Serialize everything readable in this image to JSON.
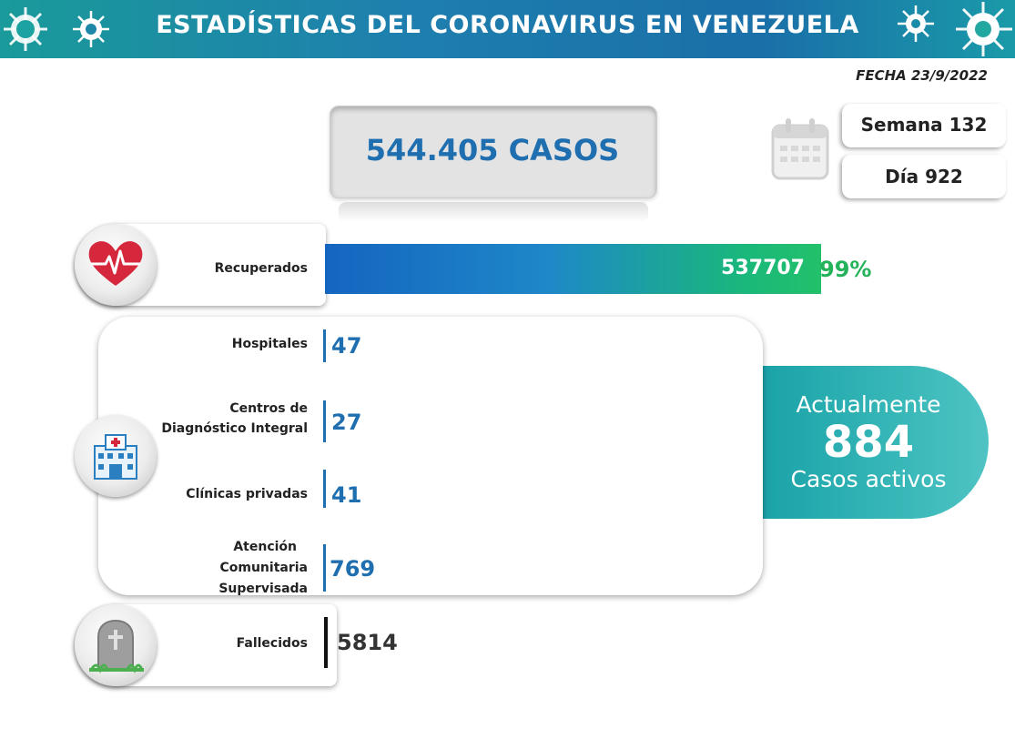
{
  "header": {
    "title": "ESTADÍSTICAS DEL CORONAVIRUS EN VENEZUELA",
    "date": "FECHA 23/9/2022"
  },
  "summary": {
    "total_cases": "544.405 CASOS",
    "week": "Semana 132",
    "day": "Día 922"
  },
  "recovered": {
    "label": "Recuperados",
    "value": "537707",
    "percent": "99%",
    "fraction": 0.99
  },
  "facilities": [
    {
      "label": "Hospitales",
      "value": "47"
    },
    {
      "label_line1": "Centros de",
      "label_line2": "Diagnóstico Integral",
      "value": "27"
    },
    {
      "label": "Clínicas privadas",
      "value": "41"
    },
    {
      "label_line1": "Atención",
      "label_line2": "Comunitaria",
      "label_line3": "Supervisada",
      "value": "769"
    }
  ],
  "active": {
    "line1": "Actualmente",
    "count": "884",
    "line3": "Casos activos"
  },
  "deceased": {
    "label": "Fallecidos",
    "value": "5814"
  },
  "colors": {
    "header": "#1e7fae",
    "accent_blue": "#1f6fb0",
    "green": "#24b35a",
    "teal": "#38b7b8"
  },
  "icons": {
    "recovered": "heart-pulse-icon",
    "facilities": "hospital-icon",
    "deceased": "tombstone-icon",
    "calendar": "calendar-icon",
    "header_decoration": "virus-icon"
  }
}
